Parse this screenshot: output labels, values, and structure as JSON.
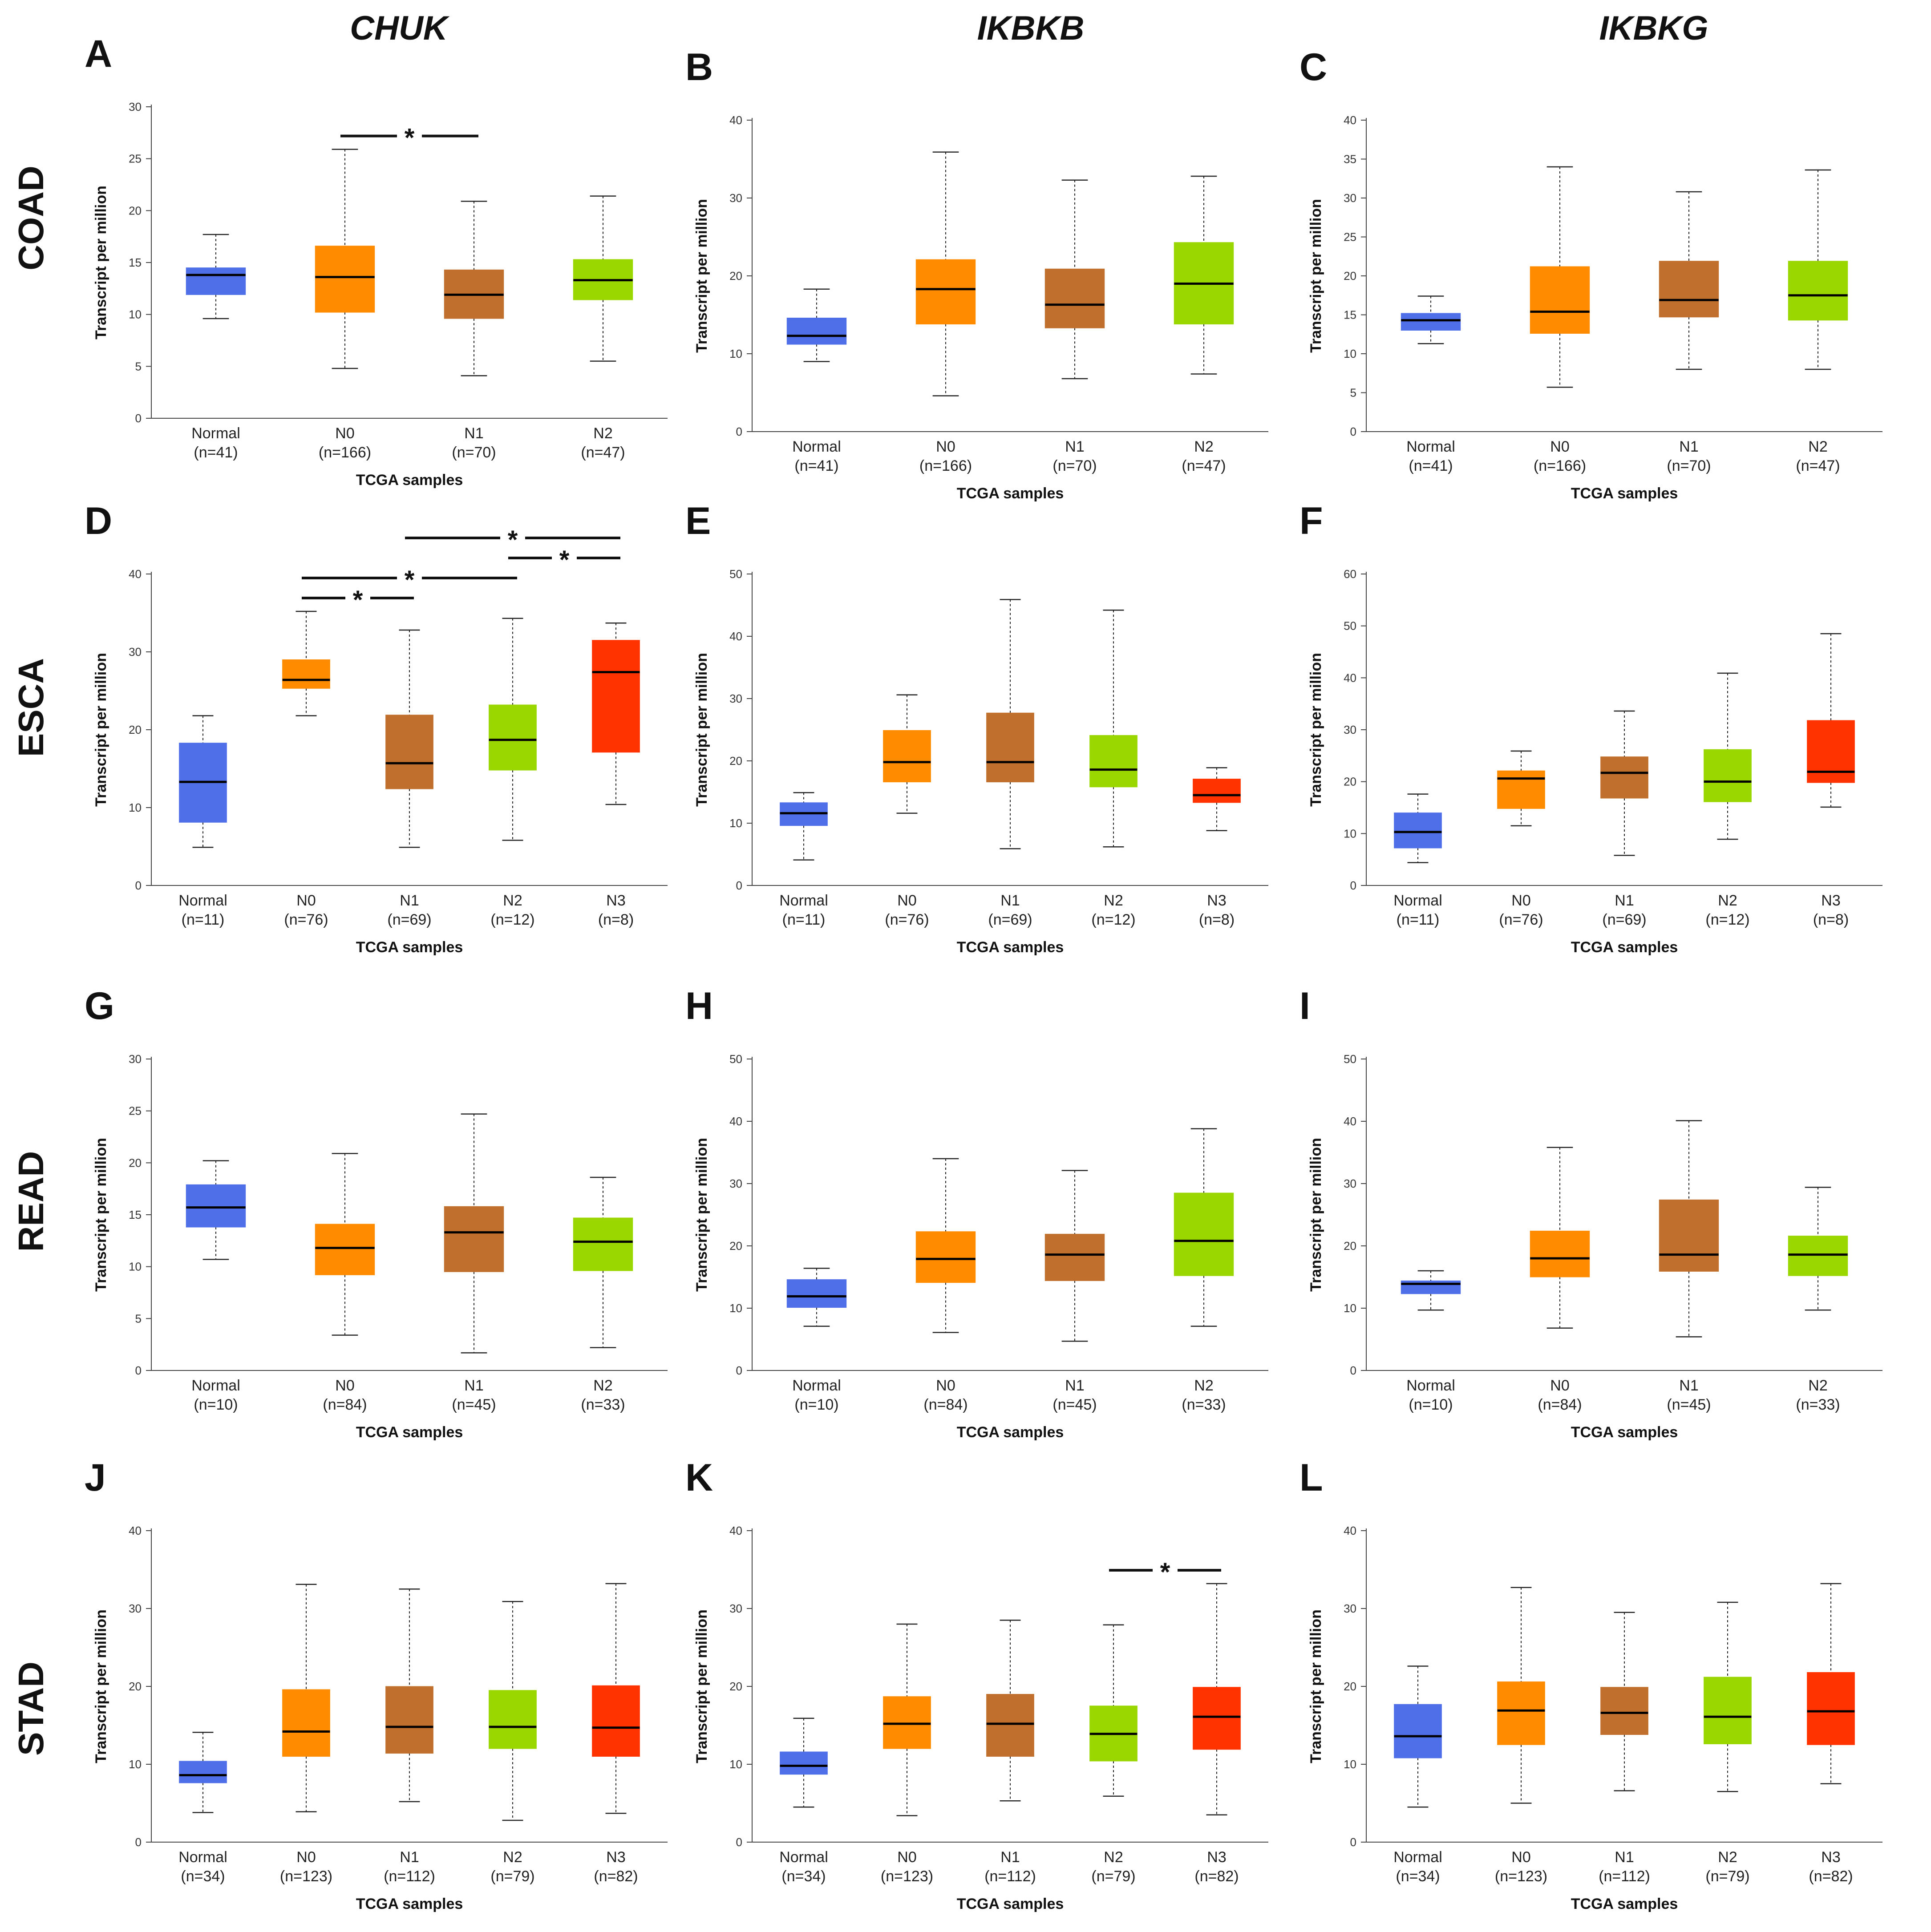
{
  "columns": [
    "CHUK",
    "IKBKB",
    "IKBKG"
  ],
  "rows": [
    "COAD",
    "ESCA",
    "READ",
    "STAD"
  ],
  "colors": {
    "Normal": "#4f6fe8",
    "N0": "#ff8c00",
    "N1": "#c0702c",
    "N2": "#9ad600",
    "N3": "#ff3300"
  },
  "chart_data": [
    {
      "panel": "A",
      "type": "boxplot",
      "gene": "CHUK",
      "cancer": "COAD",
      "ylabel": "Transcript per million",
      "xlabel": "TCGA samples",
      "ylim": [
        0,
        30
      ],
      "yticks": [
        0,
        5,
        10,
        15,
        20,
        25,
        30
      ],
      "categories": [
        "Normal",
        "N0",
        "N1",
        "N2"
      ],
      "n": [
        "(n=41)",
        "(n=166)",
        "(n=70)",
        "(n=47)"
      ],
      "boxes": [
        {
          "min": 9.6,
          "q1": 11.9,
          "median": 13.8,
          "q3": 14.5,
          "max": 17.7
        },
        {
          "min": 4.8,
          "q1": 10.2,
          "median": 13.6,
          "q3": 16.6,
          "max": 25.9
        },
        {
          "min": 4.1,
          "q1": 9.6,
          "median": 11.9,
          "q3": 14.3,
          "max": 20.9
        },
        {
          "min": 5.5,
          "q1": 11.4,
          "median": 13.3,
          "q3": 15.3,
          "max": 21.4
        }
      ],
      "sig": [
        {
          "from": 1,
          "to": 2,
          "level": 0
        }
      ]
    },
    {
      "panel": "B",
      "type": "boxplot",
      "gene": "IKBKB",
      "cancer": "COAD",
      "ylabel": "Transcript per million",
      "xlabel": "TCGA samples",
      "ylim": [
        0,
        40
      ],
      "yticks": [
        0,
        10,
        20,
        30,
        40
      ],
      "categories": [
        "Normal",
        "N0",
        "N1",
        "N2"
      ],
      "n": [
        "(n=41)",
        "(n=166)",
        "(n=70)",
        "(n=47)"
      ],
      "boxes": [
        {
          "min": 9.0,
          "q1": 11.2,
          "median": 12.3,
          "q3": 14.6,
          "max": 18.3
        },
        {
          "min": 4.6,
          "q1": 13.8,
          "median": 18.3,
          "q3": 22.1,
          "max": 35.9
        },
        {
          "min": 6.8,
          "q1": 13.3,
          "median": 16.3,
          "q3": 20.9,
          "max": 32.3
        },
        {
          "min": 7.4,
          "q1": 13.8,
          "median": 19.0,
          "q3": 24.3,
          "max": 32.8
        }
      ],
      "sig": []
    },
    {
      "panel": "C",
      "type": "boxplot",
      "gene": "IKBKG",
      "cancer": "COAD",
      "ylabel": "Transcript per million",
      "xlabel": "TCGA samples",
      "ylim": [
        0,
        40
      ],
      "yticks": [
        0,
        5,
        10,
        15,
        20,
        25,
        30,
        35,
        40
      ],
      "categories": [
        "Normal",
        "N0",
        "N1",
        "N2"
      ],
      "n": [
        "(n=41)",
        "(n=166)",
        "(n=70)",
        "(n=47)"
      ],
      "boxes": [
        {
          "min": 11.3,
          "q1": 13.0,
          "median": 14.3,
          "q3": 15.2,
          "max": 17.4
        },
        {
          "min": 5.7,
          "q1": 12.6,
          "median": 15.4,
          "q3": 21.2,
          "max": 34.0
        },
        {
          "min": 8.0,
          "q1": 14.7,
          "median": 16.9,
          "q3": 21.9,
          "max": 30.8
        },
        {
          "min": 8.0,
          "q1": 14.3,
          "median": 17.5,
          "q3": 21.9,
          "max": 33.6
        }
      ],
      "sig": []
    },
    {
      "panel": "D",
      "type": "boxplot",
      "gene": "CHUK",
      "cancer": "ESCA",
      "ylabel": "Transcript per million",
      "xlabel": "TCGA samples",
      "ylim": [
        0,
        40
      ],
      "yticks": [
        0,
        10,
        20,
        30,
        40
      ],
      "categories": [
        "Normal",
        "N0",
        "N1",
        "N2",
        "N3"
      ],
      "n": [
        "(n=11)",
        "(n=76)",
        "(n=69)",
        "(n=12)",
        "(n=8)"
      ],
      "boxes": [
        {
          "min": 4.9,
          "q1": 8.1,
          "median": 13.3,
          "q3": 18.3,
          "max": 21.8
        },
        {
          "min": 21.8,
          "q1": 25.3,
          "median": 26.4,
          "q3": 29.0,
          "max": 35.2
        },
        {
          "min": 4.9,
          "q1": 12.4,
          "median": 15.7,
          "q3": 21.9,
          "max": 32.8
        },
        {
          "min": 5.8,
          "q1": 14.8,
          "median": 18.7,
          "q3": 23.2,
          "max": 34.3
        },
        {
          "min": 10.4,
          "q1": 17.1,
          "median": 27.4,
          "q3": 31.5,
          "max": 33.7
        }
      ],
      "sig": [
        {
          "from": 1,
          "to": 2,
          "level": 0
        },
        {
          "from": 1,
          "to": 3,
          "level": 1
        },
        {
          "from": 3,
          "to": 4,
          "level": 2
        },
        {
          "from": 2,
          "to": 4,
          "level": 3
        }
      ]
    },
    {
      "panel": "E",
      "type": "boxplot",
      "gene": "IKBKB",
      "cancer": "ESCA",
      "ylabel": "Transcript per million",
      "xlabel": "TCGA samples",
      "ylim": [
        0,
        50
      ],
      "yticks": [
        0,
        10,
        20,
        30,
        40,
        50
      ],
      "categories": [
        "Normal",
        "N0",
        "N1",
        "N2",
        "N3"
      ],
      "n": [
        "(n=11)",
        "(n=76)",
        "(n=69)",
        "(n=12)",
        "(n=8)"
      ],
      "boxes": [
        {
          "min": 4.1,
          "q1": 9.6,
          "median": 11.6,
          "q3": 13.3,
          "max": 14.9
        },
        {
          "min": 11.6,
          "q1": 16.6,
          "median": 19.8,
          "q3": 24.9,
          "max": 30.6
        },
        {
          "min": 5.9,
          "q1": 16.6,
          "median": 19.8,
          "q3": 27.7,
          "max": 45.9
        },
        {
          "min": 6.2,
          "q1": 15.8,
          "median": 18.6,
          "q3": 24.1,
          "max": 44.2
        },
        {
          "min": 8.8,
          "q1": 13.3,
          "median": 14.5,
          "q3": 17.1,
          "max": 18.9
        }
      ],
      "sig": []
    },
    {
      "panel": "F",
      "type": "boxplot",
      "gene": "IKBKG",
      "cancer": "ESCA",
      "ylabel": "Transcript per million",
      "xlabel": "TCGA samples",
      "ylim": [
        0,
        60
      ],
      "yticks": [
        0,
        10,
        20,
        30,
        40,
        50,
        60
      ],
      "categories": [
        "Normal",
        "N0",
        "N1",
        "N2",
        "N3"
      ],
      "n": [
        "(n=11)",
        "(n=76)",
        "(n=69)",
        "(n=12)",
        "(n=8)"
      ],
      "boxes": [
        {
          "min": 4.4,
          "q1": 7.2,
          "median": 10.3,
          "q3": 14.0,
          "max": 17.6
        },
        {
          "min": 11.5,
          "q1": 14.8,
          "median": 20.6,
          "q3": 22.1,
          "max": 25.9
        },
        {
          "min": 5.8,
          "q1": 16.8,
          "median": 21.7,
          "q3": 24.8,
          "max": 33.6
        },
        {
          "min": 8.9,
          "q1": 16.1,
          "median": 20.0,
          "q3": 26.2,
          "max": 40.9
        },
        {
          "min": 15.1,
          "q1": 19.8,
          "median": 21.9,
          "q3": 31.8,
          "max": 48.5
        }
      ],
      "sig": []
    },
    {
      "panel": "G",
      "type": "boxplot",
      "gene": "CHUK",
      "cancer": "READ",
      "ylabel": "Transcript per million",
      "xlabel": "TCGA samples",
      "ylim": [
        0,
        30
      ],
      "yticks": [
        0,
        5,
        10,
        15,
        20,
        25,
        30
      ],
      "categories": [
        "Normal",
        "N0",
        "N1",
        "N2"
      ],
      "n": [
        "(n=10)",
        "(n=84)",
        "(n=45)",
        "(n=33)"
      ],
      "boxes": [
        {
          "min": 10.7,
          "q1": 13.8,
          "median": 15.7,
          "q3": 17.9,
          "max": 20.2
        },
        {
          "min": 3.4,
          "q1": 9.2,
          "median": 11.8,
          "q3": 14.1,
          "max": 20.9
        },
        {
          "min": 1.7,
          "q1": 9.5,
          "median": 13.3,
          "q3": 15.8,
          "max": 24.7
        },
        {
          "min": 2.2,
          "q1": 9.6,
          "median": 12.4,
          "q3": 14.7,
          "max": 18.6
        }
      ],
      "sig": []
    },
    {
      "panel": "H",
      "type": "boxplot",
      "gene": "IKBKB",
      "cancer": "READ",
      "ylabel": "Transcript per million",
      "xlabel": "TCGA samples",
      "ylim": [
        0,
        50
      ],
      "yticks": [
        0,
        10,
        20,
        30,
        40,
        50
      ],
      "categories": [
        "Normal",
        "N0",
        "N1",
        "N2"
      ],
      "n": [
        "(n=10)",
        "(n=84)",
        "(n=45)",
        "(n=33)"
      ],
      "boxes": [
        {
          "min": 7.1,
          "q1": 10.1,
          "median": 11.9,
          "q3": 14.6,
          "max": 16.4
        },
        {
          "min": 6.1,
          "q1": 14.1,
          "median": 17.9,
          "q3": 22.3,
          "max": 34.0
        },
        {
          "min": 4.7,
          "q1": 14.4,
          "median": 18.6,
          "q3": 21.9,
          "max": 32.1
        },
        {
          "min": 7.1,
          "q1": 15.2,
          "median": 20.8,
          "q3": 28.5,
          "max": 38.8
        }
      ],
      "sig": []
    },
    {
      "panel": "I",
      "type": "boxplot",
      "gene": "IKBKG",
      "cancer": "READ",
      "ylabel": "Transcript per million",
      "xlabel": "TCGA samples",
      "ylim": [
        0,
        50
      ],
      "yticks": [
        0,
        10,
        20,
        30,
        40,
        50
      ],
      "categories": [
        "Normal",
        "N0",
        "N1",
        "N2"
      ],
      "n": [
        "(n=10)",
        "(n=84)",
        "(n=45)",
        "(n=33)"
      ],
      "boxes": [
        {
          "min": 9.7,
          "q1": 12.3,
          "median": 13.9,
          "q3": 14.4,
          "max": 16.0
        },
        {
          "min": 6.8,
          "q1": 15.0,
          "median": 18.0,
          "q3": 22.4,
          "max": 35.8
        },
        {
          "min": 5.4,
          "q1": 15.9,
          "median": 18.6,
          "q3": 27.4,
          "max": 40.1
        },
        {
          "min": 9.7,
          "q1": 15.2,
          "median": 18.6,
          "q3": 21.6,
          "max": 29.4
        }
      ],
      "sig": []
    },
    {
      "panel": "J",
      "type": "boxplot",
      "gene": "CHUK",
      "cancer": "STAD",
      "ylabel": "Transcript per million",
      "xlabel": "TCGA samples",
      "ylim": [
        0,
        40
      ],
      "yticks": [
        0,
        10,
        20,
        30,
        40
      ],
      "categories": [
        "Normal",
        "N0",
        "N1",
        "N2",
        "N3"
      ],
      "n": [
        "(n=34)",
        "(n=123)",
        "(n=112)",
        "(n=79)",
        "(n=82)"
      ],
      "boxes": [
        {
          "min": 3.8,
          "q1": 7.6,
          "median": 8.6,
          "q3": 10.4,
          "max": 14.1
        },
        {
          "min": 3.9,
          "q1": 11.0,
          "median": 14.2,
          "q3": 19.6,
          "max": 33.1
        },
        {
          "min": 5.2,
          "q1": 11.4,
          "median": 14.8,
          "q3": 20.0,
          "max": 32.5
        },
        {
          "min": 2.8,
          "q1": 12.0,
          "median": 14.8,
          "q3": 19.5,
          "max": 30.9
        },
        {
          "min": 3.7,
          "q1": 11.0,
          "median": 14.7,
          "q3": 20.1,
          "max": 33.2
        }
      ],
      "sig": []
    },
    {
      "panel": "K",
      "type": "boxplot",
      "gene": "IKBKB",
      "cancer": "STAD",
      "ylabel": "Transcript per million",
      "xlabel": "TCGA samples",
      "ylim": [
        0,
        40
      ],
      "yticks": [
        0,
        10,
        20,
        30,
        40
      ],
      "categories": [
        "Normal",
        "N0",
        "N1",
        "N2",
        "N3"
      ],
      "n": [
        "(n=34)",
        "(n=123)",
        "(n=112)",
        "(n=79)",
        "(n=82)"
      ],
      "boxes": [
        {
          "min": 4.5,
          "q1": 8.7,
          "median": 9.8,
          "q3": 11.6,
          "max": 15.9
        },
        {
          "min": 3.4,
          "q1": 12.0,
          "median": 15.2,
          "q3": 18.7,
          "max": 28.0
        },
        {
          "min": 5.3,
          "q1": 11.0,
          "median": 15.2,
          "q3": 19.0,
          "max": 28.5
        },
        {
          "min": 5.9,
          "q1": 10.4,
          "median": 13.9,
          "q3": 17.5,
          "max": 27.9
        },
        {
          "min": 3.5,
          "q1": 11.9,
          "median": 16.1,
          "q3": 19.9,
          "max": 33.2
        }
      ],
      "sig": [
        {
          "from": 3,
          "to": 4,
          "level": 0
        }
      ]
    },
    {
      "panel": "L",
      "type": "boxplot",
      "gene": "IKBKG",
      "cancer": "STAD",
      "ylabel": "Transcript per million",
      "xlabel": "TCGA samples",
      "ylim": [
        0,
        40
      ],
      "yticks": [
        0,
        10,
        20,
        30,
        40
      ],
      "categories": [
        "Normal",
        "N0",
        "N1",
        "N2",
        "N3"
      ],
      "n": [
        "(n=34)",
        "(n=123)",
        "(n=112)",
        "(n=79)",
        "(n=82)"
      ],
      "boxes": [
        {
          "min": 4.5,
          "q1": 10.8,
          "median": 13.6,
          "q3": 17.7,
          "max": 22.6
        },
        {
          "min": 5.0,
          "q1": 12.5,
          "median": 16.9,
          "q3": 20.6,
          "max": 32.7
        },
        {
          "min": 6.6,
          "q1": 13.8,
          "median": 16.6,
          "q3": 19.9,
          "max": 29.5
        },
        {
          "min": 6.5,
          "q1": 12.6,
          "median": 16.1,
          "q3": 21.2,
          "max": 30.8
        },
        {
          "min": 7.5,
          "q1": 12.5,
          "median": 16.8,
          "q3": 21.8,
          "max": 33.2
        }
      ],
      "sig": []
    }
  ]
}
